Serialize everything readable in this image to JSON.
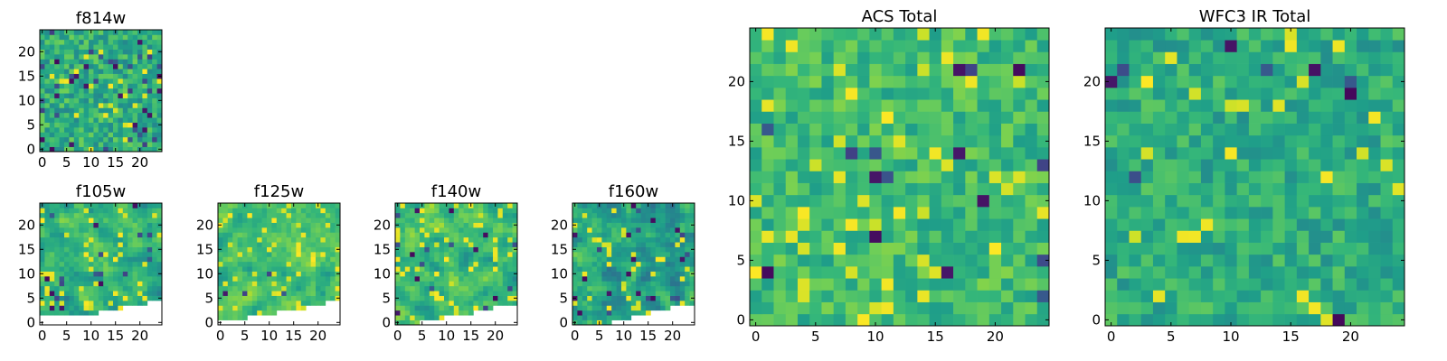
{
  "figure": {
    "colormap": "viridis"
  },
  "chart_data": [
    {
      "id": "f814w",
      "type": "heatmap",
      "title": "f814w",
      "grid_size": 25,
      "vmin": 0,
      "vmax": 1,
      "seed": 814,
      "mean": 0.62,
      "spread": 0.16,
      "dark_prob": 0.025,
      "bright_prob": 0.06,
      "smooth": false,
      "missing": [],
      "xticks": [
        0,
        5,
        10,
        15,
        20
      ],
      "yticks": [
        0,
        5,
        10,
        15,
        20
      ],
      "xlim": [
        0,
        24
      ],
      "ylim": [
        0,
        24
      ]
    },
    {
      "id": "f105w",
      "type": "heatmap",
      "title": "f105w",
      "grid_size": 25,
      "vmin": 0,
      "vmax": 1,
      "seed": 105,
      "mean": 0.64,
      "spread": 0.15,
      "dark_prob": 0.012,
      "bright_prob": 0.07,
      "smooth": true,
      "missing": [
        [
          0,
          6,
          1
        ],
        [
          7,
          12,
          1
        ],
        [
          12,
          17,
          2
        ],
        [
          17,
          22,
          3
        ],
        [
          22,
          24,
          4
        ]
      ],
      "xticks": [
        0,
        5,
        10,
        15,
        20
      ],
      "yticks": [
        0,
        5,
        10,
        15,
        20
      ],
      "xlim": [
        0,
        24
      ],
      "ylim": [
        0,
        24
      ]
    },
    {
      "id": "f125w",
      "type": "heatmap",
      "title": "f125w",
      "grid_size": 25,
      "vmin": 0,
      "vmax": 1,
      "seed": 125,
      "mean": 0.7,
      "spread": 0.12,
      "dark_prob": 0.008,
      "bright_prob": 0.09,
      "smooth": true,
      "missing": [
        [
          0,
          1,
          0
        ],
        [
          1,
          6,
          0
        ],
        [
          6,
          12,
          1
        ],
        [
          12,
          18,
          2
        ],
        [
          18,
          22,
          3
        ],
        [
          22,
          24,
          4
        ]
      ],
      "xticks": [
        0,
        5,
        10,
        15,
        20
      ],
      "yticks": [
        0,
        5,
        10,
        15,
        20
      ],
      "xlim": [
        0,
        24
      ],
      "ylim": [
        0,
        24
      ]
    },
    {
      "id": "f140w",
      "type": "heatmap",
      "title": "f140w",
      "grid_size": 25,
      "vmin": 0,
      "vmax": 1,
      "seed": 140,
      "mean": 0.68,
      "spread": 0.14,
      "dark_prob": 0.01,
      "bright_prob": 0.08,
      "smooth": true,
      "missing": [
        [
          5,
          10,
          0
        ],
        [
          10,
          16,
          1
        ],
        [
          16,
          20,
          2
        ],
        [
          20,
          24,
          3
        ]
      ],
      "xticks": [
        0,
        5,
        10,
        15,
        20
      ],
      "yticks": [
        0,
        5,
        10,
        15,
        20
      ],
      "xlim": [
        0,
        24
      ],
      "ylim": [
        0,
        24
      ]
    },
    {
      "id": "f160w",
      "type": "heatmap",
      "title": "f160w",
      "grid_size": 25,
      "vmin": 0,
      "vmax": 1,
      "seed": 160,
      "mean": 0.58,
      "spread": 0.17,
      "dark_prob": 0.015,
      "bright_prob": 0.05,
      "smooth": true,
      "missing": [
        [
          8,
          12,
          0
        ],
        [
          12,
          16,
          1
        ],
        [
          16,
          20,
          2
        ],
        [
          20,
          24,
          3
        ]
      ],
      "xticks": [
        0,
        5,
        10,
        15,
        20
      ],
      "yticks": [
        0,
        5,
        10,
        15,
        20
      ],
      "xlim": [
        0,
        24
      ],
      "ylim": [
        0,
        24
      ]
    },
    {
      "id": "acs-total",
      "type": "heatmap",
      "title": "ACS Total",
      "grid_size": 25,
      "vmin": 0,
      "vmax": 1,
      "seed": 1000,
      "mean": 0.68,
      "spread": 0.13,
      "dark_prob": 0.012,
      "bright_prob": 0.07,
      "smooth": false,
      "missing": [],
      "xticks": [
        0,
        5,
        10,
        15,
        20
      ],
      "yticks": [
        0,
        5,
        10,
        15,
        20
      ],
      "xlim": [
        0,
        24
      ],
      "ylim": [
        0,
        24
      ]
    },
    {
      "id": "wfc3-ir-total",
      "type": "heatmap",
      "title": "WFC3 IR Total",
      "grid_size": 25,
      "vmin": 0,
      "vmax": 1,
      "seed": 2000,
      "mean": 0.62,
      "spread": 0.13,
      "dark_prob": 0.012,
      "bright_prob": 0.05,
      "smooth": false,
      "missing": [],
      "xticks": [
        0,
        5,
        10,
        15,
        20
      ],
      "yticks": [
        0,
        5,
        10,
        15,
        20
      ],
      "xlim": [
        0,
        24
      ],
      "ylim": [
        0,
        24
      ]
    }
  ]
}
